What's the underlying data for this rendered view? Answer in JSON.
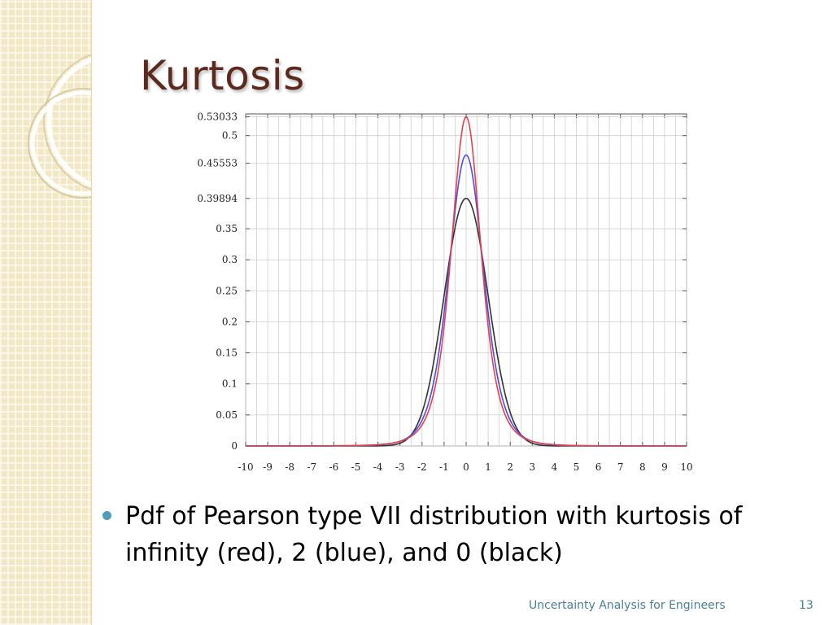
{
  "slide": {
    "title": "Kurtosis",
    "bullet": "Pdf of Pearson type VII distribution with kurtosis of infinity (red), 2 (blue), and 0 (black)",
    "footer": "Uncertainty Analysis for Engineers",
    "page_number": "13"
  },
  "colors": {
    "title": "#5c2a1d",
    "bullet": "#4f9eb3",
    "footer": "#4a7f99",
    "sidebar": "#f3e8c6"
  },
  "chart_data": {
    "type": "line",
    "xlim": [
      -10,
      10
    ],
    "ylim": [
      0,
      0.53033
    ],
    "x_ticks": [
      "-10",
      "-9",
      "-8",
      "-7",
      "-6",
      "-5",
      "-4",
      "-3",
      "-2",
      "-1",
      "0",
      "1",
      "2",
      "3",
      "4",
      "5",
      "6",
      "7",
      "8",
      "9",
      "10"
    ],
    "y_ticks": [
      "0",
      "0.05",
      "0.1",
      "0.15",
      "0.2",
      "0.25",
      "0.3",
      "0.35",
      "0.39894",
      "0.45553",
      "0.5",
      "0.53033"
    ],
    "grid": true,
    "series": [
      {
        "color": "#e8404a",
        "distribution": "Pearson type VII",
        "kurtosis": "infinity",
        "peak": 0.53033
      },
      {
        "color": "#4c4cf0",
        "distribution": "Pearson type VII",
        "kurtosis": 2,
        "peak": 0.45553
      },
      {
        "color": "#333333",
        "distribution": "Pearson type VII",
        "kurtosis": 0,
        "peak": 0.39894
      }
    ]
  }
}
